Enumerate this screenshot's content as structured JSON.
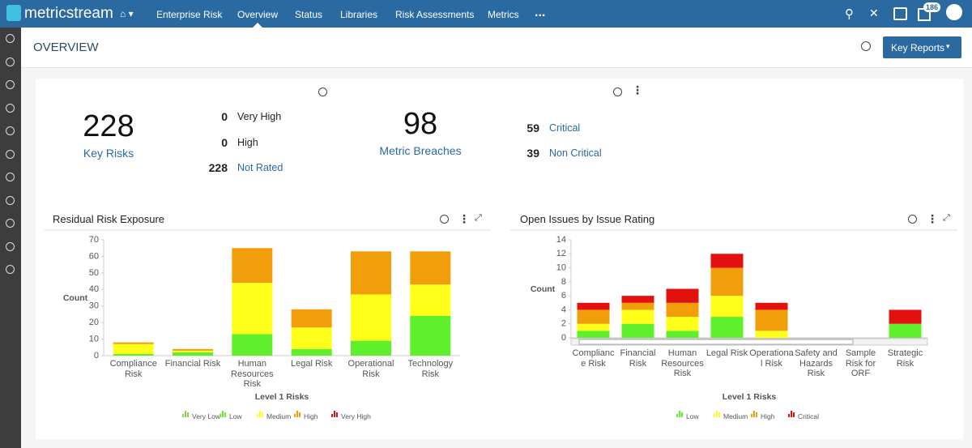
{
  "nav": {
    "brand": "metricstream",
    "breadcrumb": "Enterprise Risk",
    "items": [
      "Overview",
      "Status",
      "Libraries",
      "Risk Assessments",
      "Metrics"
    ],
    "more": "...",
    "badge": "186"
  },
  "header": {
    "title": "OVERVIEW",
    "button": "Key Reports"
  },
  "kpis": [
    {
      "value": 228,
      "label": "Key Risks",
      "breakdown": [
        {
          "value": 0,
          "label": "Very High"
        },
        {
          "value": 0,
          "label": "High"
        },
        {
          "value": 228,
          "label": "Not Rated"
        }
      ]
    },
    {
      "value": 98,
      "label": "Metric Breaches",
      "breakdown": [
        {
          "value": 59,
          "label": "Critical"
        },
        {
          "value": 39,
          "label": "Non Critical"
        }
      ]
    }
  ],
  "chart_data": [
    {
      "type": "bar",
      "stacked": true,
      "title": "Residual Risk Exposure",
      "y_label": "Count",
      "x_label": "Level 1 Risks",
      "categories": [
        "Compliance Risk",
        "Financial Risk",
        "Human Resources Risk",
        "Legal Risk",
        "Operational Risk",
        "Technology Risk"
      ],
      "series": [
        {
          "name": "Very Low",
          "color": "#8fd14f",
          "values": [
            0,
            0,
            0,
            0,
            0,
            0
          ]
        },
        {
          "name": "Low",
          "color": "#5ef02a",
          "values": [
            1,
            2,
            13,
            4,
            9,
            24
          ]
        },
        {
          "name": "Medium",
          "color": "#ffff1a",
          "values": [
            6,
            1,
            31,
            13,
            28,
            19
          ]
        },
        {
          "name": "High",
          "color": "#f29d0a",
          "values": [
            1,
            1,
            21,
            11,
            26,
            20
          ]
        },
        {
          "name": "Very High",
          "color": "#e31010",
          "values": [
            0,
            0,
            0,
            0,
            0,
            0
          ]
        }
      ],
      "ylim": [
        0,
        70
      ],
      "yticks": [
        0,
        10,
        20,
        30,
        40,
        50,
        60,
        70
      ],
      "legend": "bottom"
    },
    {
      "type": "bar",
      "stacked": true,
      "title": "Open Issues by Issue Rating",
      "y_label": "Count",
      "x_label": "Level 1 Risks",
      "categories": [
        "Compliance Risk",
        "Financial Risk",
        "Human Resources Risk",
        "Legal Risk",
        "Operational Risk",
        "Safety and Hazards Risk",
        "Sample Risk for ORF",
        "Strategic Risk"
      ],
      "series": [
        {
          "name": "Low",
          "color": "#5ef02a",
          "values": [
            1,
            2,
            1,
            3,
            0,
            0,
            0,
            2
          ]
        },
        {
          "name": "Medium",
          "color": "#ffff1a",
          "values": [
            1,
            2,
            2,
            3,
            1,
            0,
            0,
            0
          ]
        },
        {
          "name": "High",
          "color": "#f29d0a",
          "values": [
            2,
            1,
            2,
            4,
            3,
            0,
            0,
            0
          ]
        },
        {
          "name": "Critical",
          "color": "#e31010",
          "values": [
            1,
            1,
            2,
            2,
            1,
            0,
            0,
            2
          ]
        }
      ],
      "ylim": [
        0,
        14
      ],
      "yticks": [
        0,
        2,
        4,
        6,
        8,
        10,
        12,
        14
      ],
      "legend": "bottom"
    }
  ]
}
